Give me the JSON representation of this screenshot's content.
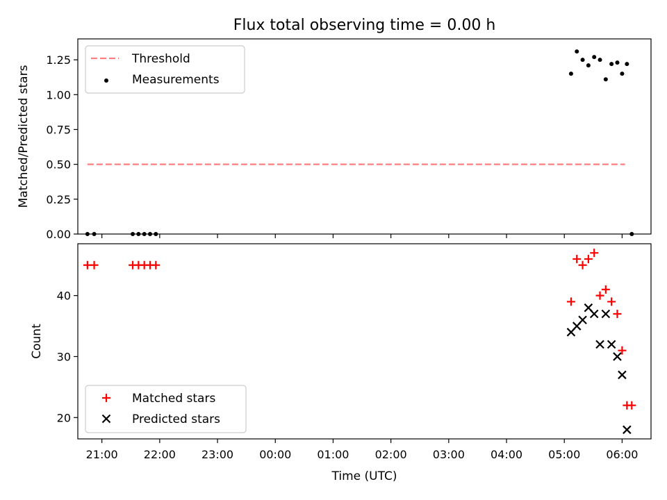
{
  "chart_data": [
    {
      "type": "scatter",
      "title": "Flux total observing time = 0.00 h",
      "xlabel": "",
      "ylabel": "Matched/Predicted stars",
      "x_axis": "time",
      "xlim": [
        "20:35",
        "06:30"
      ],
      "ylim": [
        0,
        1.4
      ],
      "yticks": [
        "0.00",
        "0.25",
        "0.50",
        "0.75",
        "1.00",
        "1.25"
      ],
      "legend": "upper left",
      "grid": false,
      "series": [
        {
          "name": "Threshold",
          "style": "dashed-line",
          "color": "#ff7f7f",
          "points": [
            {
              "x": "20:45",
              "y": 0.5
            },
            {
              "x": "06:03",
              "y": 0.5
            }
          ]
        },
        {
          "name": "Measurements",
          "style": "dot",
          "color": "#000000",
          "points": [
            {
              "x": "20:45",
              "y": 0.0
            },
            {
              "x": "20:52",
              "y": 0.0
            },
            {
              "x": "21:32",
              "y": 0.0
            },
            {
              "x": "21:38",
              "y": 0.0
            },
            {
              "x": "21:44",
              "y": 0.0
            },
            {
              "x": "21:50",
              "y": 0.0
            },
            {
              "x": "21:56",
              "y": 0.0
            },
            {
              "x": "05:07",
              "y": 1.15
            },
            {
              "x": "05:13",
              "y": 1.31
            },
            {
              "x": "05:19",
              "y": 1.25
            },
            {
              "x": "05:25",
              "y": 1.21
            },
            {
              "x": "05:31",
              "y": 1.27
            },
            {
              "x": "05:37",
              "y": 1.25
            },
            {
              "x": "05:43",
              "y": 1.11
            },
            {
              "x": "05:49",
              "y": 1.22
            },
            {
              "x": "05:55",
              "y": 1.23
            },
            {
              "x": "06:00",
              "y": 1.15
            },
            {
              "x": "06:05",
              "y": 1.22
            },
            {
              "x": "06:10",
              "y": 0.0
            }
          ]
        }
      ]
    },
    {
      "type": "scatter",
      "title": "",
      "xlabel": "Time (UTC)",
      "ylabel": "Count",
      "x_axis": "time",
      "xlim": [
        "20:35",
        "06:30"
      ],
      "ylim": [
        16.5,
        48.5
      ],
      "yticks": [
        "20",
        "30",
        "40"
      ],
      "xticks": [
        "21:00",
        "22:00",
        "23:00",
        "00:00",
        "01:00",
        "02:00",
        "03:00",
        "04:00",
        "05:00",
        "06:00"
      ],
      "legend": "lower left",
      "grid": false,
      "series": [
        {
          "name": "Matched stars",
          "style": "plus",
          "color": "#ff0000",
          "points": [
            {
              "x": "20:45",
              "y": 45
            },
            {
              "x": "20:52",
              "y": 45
            },
            {
              "x": "21:32",
              "y": 45
            },
            {
              "x": "21:38",
              "y": 45
            },
            {
              "x": "21:44",
              "y": 45
            },
            {
              "x": "21:50",
              "y": 45
            },
            {
              "x": "21:56",
              "y": 45
            },
            {
              "x": "05:07",
              "y": 39
            },
            {
              "x": "05:13",
              "y": 46
            },
            {
              "x": "05:19",
              "y": 45
            },
            {
              "x": "05:25",
              "y": 46
            },
            {
              "x": "05:31",
              "y": 47
            },
            {
              "x": "05:37",
              "y": 40
            },
            {
              "x": "05:43",
              "y": 41
            },
            {
              "x": "05:49",
              "y": 39
            },
            {
              "x": "05:55",
              "y": 37
            },
            {
              "x": "06:00",
              "y": 31
            },
            {
              "x": "06:05",
              "y": 22
            },
            {
              "x": "06:10",
              "y": 22
            }
          ]
        },
        {
          "name": "Predicted stars",
          "style": "x",
          "color": "#000000",
          "points": [
            {
              "x": "05:07",
              "y": 34
            },
            {
              "x": "05:13",
              "y": 35
            },
            {
              "x": "05:19",
              "y": 36
            },
            {
              "x": "05:25",
              "y": 38
            },
            {
              "x": "05:31",
              "y": 37
            },
            {
              "x": "05:37",
              "y": 32
            },
            {
              "x": "05:43",
              "y": 37
            },
            {
              "x": "05:49",
              "y": 32
            },
            {
              "x": "05:55",
              "y": 30
            },
            {
              "x": "06:00",
              "y": 27
            },
            {
              "x": "06:05",
              "y": 18
            }
          ]
        }
      ]
    }
  ]
}
